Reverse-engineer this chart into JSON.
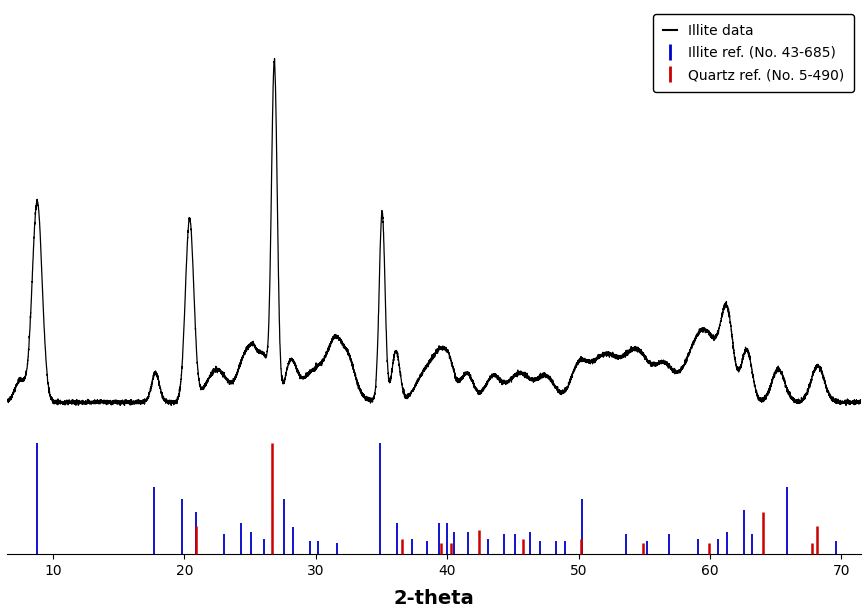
{
  "xlabel": "2-theta",
  "xlabel_fontsize": 14,
  "xlabel_fontweight": "bold",
  "xlim": [
    6.5,
    71.5
  ],
  "ylim": [
    -0.32,
    1.08
  ],
  "x_ticks": [
    10,
    20,
    30,
    40,
    50,
    60,
    70
  ],
  "background_color": "#ffffff",
  "line_color": "#000000",
  "illite_ref_color": "#0000cc",
  "quartz_ref_color": "#cc0000",
  "illite_ref_peaks": [
    [
      8.8,
      1.0
    ],
    [
      17.7,
      0.6
    ],
    [
      19.8,
      0.5
    ],
    [
      20.9,
      0.38
    ],
    [
      23.0,
      0.18
    ],
    [
      24.3,
      0.28
    ],
    [
      25.1,
      0.2
    ],
    [
      26.1,
      0.14
    ],
    [
      27.6,
      0.5
    ],
    [
      28.3,
      0.24
    ],
    [
      29.6,
      0.12
    ],
    [
      30.2,
      0.12
    ],
    [
      31.6,
      0.1
    ],
    [
      34.9,
      1.0
    ],
    [
      36.2,
      0.28
    ],
    [
      37.3,
      0.14
    ],
    [
      38.5,
      0.12
    ],
    [
      39.4,
      0.28
    ],
    [
      40.0,
      0.28
    ],
    [
      40.5,
      0.2
    ],
    [
      41.6,
      0.2
    ],
    [
      43.1,
      0.14
    ],
    [
      44.3,
      0.18
    ],
    [
      45.2,
      0.18
    ],
    [
      46.3,
      0.2
    ],
    [
      47.1,
      0.12
    ],
    [
      48.3,
      0.12
    ],
    [
      49.0,
      0.12
    ],
    [
      50.3,
      0.5
    ],
    [
      53.6,
      0.18
    ],
    [
      55.2,
      0.12
    ],
    [
      56.9,
      0.18
    ],
    [
      59.1,
      0.14
    ],
    [
      60.6,
      0.14
    ],
    [
      61.3,
      0.2
    ],
    [
      62.6,
      0.4
    ],
    [
      63.2,
      0.18
    ],
    [
      65.9,
      0.6
    ],
    [
      69.6,
      0.12
    ]
  ],
  "quartz_ref_peaks": [
    [
      20.85,
      0.25
    ],
    [
      26.65,
      1.0
    ],
    [
      36.55,
      0.14
    ],
    [
      39.5,
      0.1
    ],
    [
      40.3,
      0.1
    ],
    [
      42.45,
      0.22
    ],
    [
      45.8,
      0.14
    ],
    [
      50.15,
      0.14
    ],
    [
      54.9,
      0.1
    ],
    [
      59.95,
      0.1
    ],
    [
      64.05,
      0.38
    ],
    [
      67.75,
      0.1
    ],
    [
      68.15,
      0.25
    ]
  ],
  "legend_loc": "upper right",
  "ref_bar_bottom": -0.3,
  "ref_bar_scale": 0.28,
  "curve_baseline": 0.09,
  "curve_noise_std": 0.003
}
